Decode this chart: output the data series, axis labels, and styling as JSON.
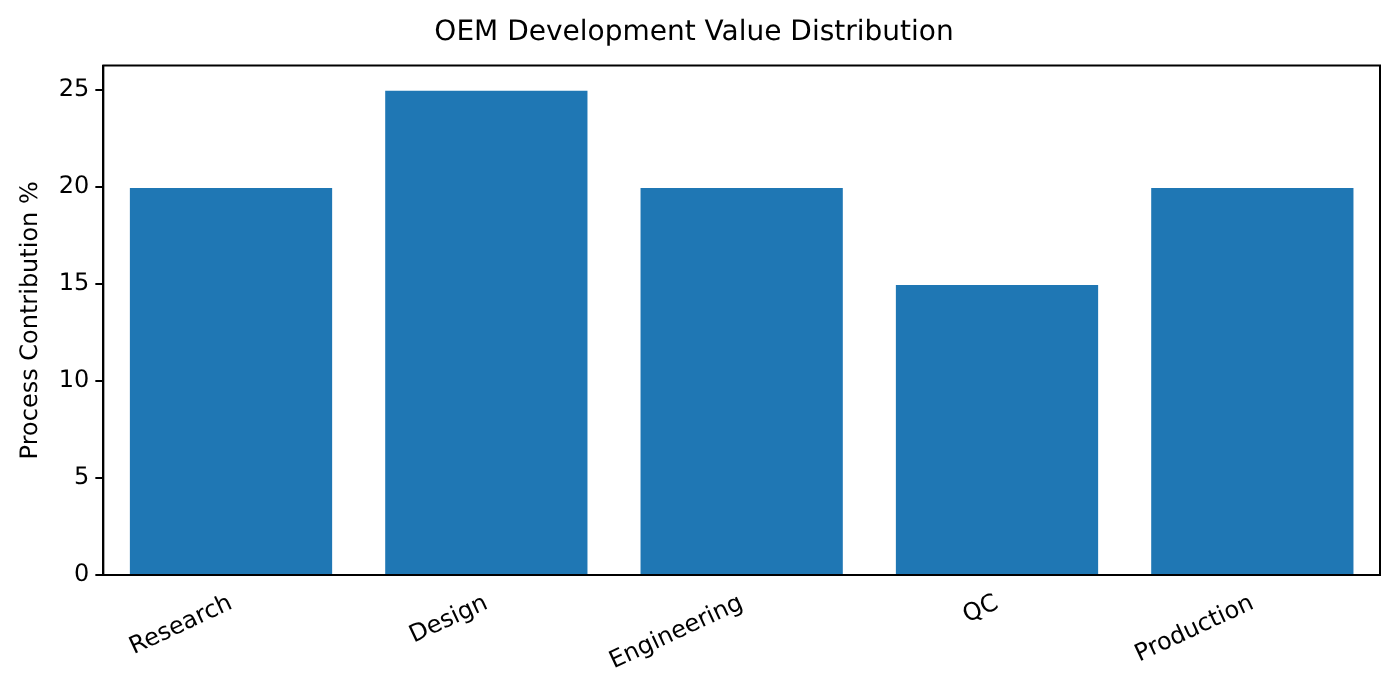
{
  "chart_data": {
    "type": "bar",
    "title": "OEM Development Value Distribution",
    "ylabel": "Process Contribution %",
    "categories": [
      "Research",
      "Design",
      "Engineering",
      "QC",
      "Production"
    ],
    "values": [
      20,
      25,
      20,
      15,
      20
    ],
    "color": "#1f77b4",
    "ylim": [
      0,
      26.25
    ],
    "yticks": [
      0,
      5,
      10,
      15,
      20,
      25
    ],
    "grid": false,
    "legend": false
  }
}
